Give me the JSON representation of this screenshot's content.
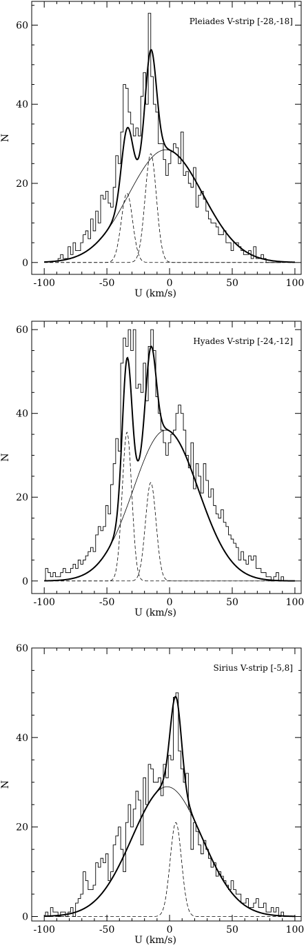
{
  "chart_data": [
    {
      "type": "line",
      "title": "Pleiades V-strip [-28,-18]",
      "xlabel": "U (km/s)",
      "ylabel": "N",
      "xlim": [
        -110,
        105
      ],
      "ylim": [
        -3,
        66
      ],
      "xticks": [
        -100,
        -50,
        0,
        50,
        100
      ],
      "yticks": [
        0,
        20,
        40,
        60
      ],
      "xtick_labels": [
        "-100",
        "-50",
        "0",
        "50",
        "100"
      ],
      "ytick_labels": [
        "0",
        "20",
        "40",
        "60"
      ],
      "grid": false,
      "series": [
        {
          "kind": "histogram",
          "bin_width": 2,
          "x": [
            -88,
            -86,
            -84,
            -82,
            -80,
            -78,
            -76,
            -74,
            -72,
            -70,
            -68,
            -66,
            -64,
            -62,
            -60,
            -58,
            -56,
            -54,
            -52,
            -50,
            -48,
            -46,
            -44,
            -42,
            -40,
            -38,
            -36,
            -34,
            -32,
            -30,
            -28,
            -26,
            -24,
            -22,
            -20,
            -18,
            -16,
            -14,
            -12,
            -10,
            -8,
            -6,
            -4,
            -2,
            0,
            2,
            4,
            6,
            8,
            10,
            12,
            14,
            16,
            18,
            20,
            22,
            24,
            26,
            28,
            30,
            32,
            34,
            36,
            38,
            40,
            42,
            44,
            46,
            48,
            50,
            52,
            54,
            56,
            58,
            60,
            62,
            64,
            66,
            68,
            70,
            72,
            74,
            76,
            78,
            80,
            82,
            84,
            86,
            88
          ],
          "values": [
            1,
            2,
            1,
            1,
            4,
            2,
            5,
            3,
            3,
            5,
            7,
            8,
            6,
            11,
            8,
            13,
            10,
            17,
            16,
            18,
            15,
            14,
            19,
            27,
            25,
            33,
            45,
            44,
            38,
            35,
            32,
            34,
            32,
            42,
            48,
            40,
            63,
            47,
            40,
            38,
            30,
            30,
            26,
            22,
            25,
            28,
            30,
            29,
            25,
            33,
            22,
            23,
            20,
            19,
            24,
            14,
            17,
            18,
            16,
            13,
            11,
            10,
            10,
            9,
            7,
            7,
            8,
            5,
            5,
            3,
            5,
            5,
            4,
            3,
            2,
            2,
            3,
            1,
            4,
            1,
            1,
            2,
            1,
            0,
            0,
            0,
            0,
            0,
            0
          ]
        },
        {
          "kind": "fit-total",
          "components": [
            [
              28.5,
              -3,
              29.5
            ],
            [
              17.5,
              -34,
              4.5
            ],
            [
              27.5,
              -15,
              4.5
            ]
          ]
        },
        {
          "kind": "fit-broad",
          "components": [
            [
              28.5,
              -3,
              29.5
            ]
          ]
        },
        {
          "kind": "fit-narrow",
          "components": [
            [
              17.5,
              -34,
              4.5
            ]
          ]
        },
        {
          "kind": "fit-narrow",
          "components": [
            [
              27.5,
              -15,
              4.5
            ]
          ]
        }
      ]
    },
    {
      "type": "line",
      "title": "Hyades V-strip [-24,-12]",
      "xlabel": "U (km/s)",
      "ylabel": "N",
      "xlim": [
        -110,
        105
      ],
      "ylim": [
        -3,
        62
      ],
      "xticks": [
        -100,
        -50,
        0,
        50,
        100
      ],
      "yticks": [
        0,
        20,
        40,
        60
      ],
      "xtick_labels": [
        "-100",
        "-50",
        "0",
        "50",
        "100"
      ],
      "ytick_labels": [
        "0",
        "20",
        "40",
        "60"
      ],
      "grid": false,
      "series": [
        {
          "kind": "histogram",
          "bin_width": 2,
          "x": [
            -98,
            -96,
            -94,
            -92,
            -90,
            -88,
            -86,
            -84,
            -82,
            -80,
            -78,
            -76,
            -74,
            -72,
            -70,
            -68,
            -66,
            -64,
            -62,
            -60,
            -58,
            -56,
            -54,
            -52,
            -50,
            -48,
            -46,
            -44,
            -42,
            -40,
            -38,
            -36,
            -34,
            -32,
            -30,
            -28,
            -26,
            -24,
            -22,
            -20,
            -18,
            -16,
            -14,
            -12,
            -10,
            -8,
            -6,
            -4,
            -2,
            0,
            2,
            4,
            6,
            8,
            10,
            12,
            14,
            16,
            18,
            20,
            22,
            24,
            26,
            28,
            30,
            32,
            34,
            36,
            38,
            40,
            42,
            44,
            46,
            48,
            50,
            52,
            54,
            56,
            58,
            60,
            62,
            64,
            66,
            68,
            70,
            72,
            74,
            76,
            78,
            80,
            82,
            84,
            86,
            88,
            90,
            92
          ],
          "values": [
            3,
            2,
            1,
            2,
            1,
            1,
            2,
            3,
            2,
            2,
            3,
            4,
            3,
            5,
            4,
            5,
            6,
            7,
            8,
            7,
            11,
            13,
            12,
            13,
            18,
            16,
            23,
            28,
            34,
            31,
            52,
            58,
            56,
            60,
            55,
            60,
            46,
            47,
            45,
            52,
            43,
            56,
            60,
            55,
            44,
            40,
            36,
            33,
            30,
            33,
            35,
            36,
            40,
            42,
            40,
            36,
            30,
            27,
            33,
            22,
            28,
            25,
            21,
            28,
            24,
            20,
            22,
            18,
            16,
            15,
            17,
            14,
            13,
            11,
            10,
            9,
            8,
            5,
            7,
            5,
            4,
            6,
            5,
            6,
            3,
            3,
            2,
            2,
            1,
            1,
            0,
            1,
            2,
            0,
            1,
            0
          ]
        },
        {
          "kind": "fit-total",
          "components": [
            [
              36,
              -3,
              26
            ],
            [
              35.5,
              -34,
              3.8
            ],
            [
              23.5,
              -15,
              4.2
            ]
          ]
        },
        {
          "kind": "fit-broad",
          "components": [
            [
              36,
              -3,
              26
            ]
          ]
        },
        {
          "kind": "fit-narrow",
          "components": [
            [
              35.5,
              -34,
              3.8
            ]
          ]
        },
        {
          "kind": "fit-narrow",
          "components": [
            [
              23.5,
              -15,
              4.2
            ]
          ]
        }
      ]
    },
    {
      "type": "line",
      "title": "Sirius V-strip [-5,8]",
      "xlabel": "U (km/s)",
      "ylabel": "N",
      "xlim": [
        -110,
        105
      ],
      "ylim": [
        -1,
        60
      ],
      "xticks": [
        -100,
        -50,
        0,
        50,
        100
      ],
      "yticks": [
        0,
        20,
        40,
        60
      ],
      "xtick_labels": [
        "-100",
        "-50",
        "0",
        "50",
        "100"
      ],
      "ytick_labels": [
        "0",
        "20",
        "40",
        "60"
      ],
      "grid": false,
      "series": [
        {
          "kind": "histogram",
          "bin_width": 2,
          "x": [
            -98,
            -96,
            -94,
            -92,
            -90,
            -88,
            -86,
            -84,
            -82,
            -80,
            -78,
            -76,
            -74,
            -72,
            -70,
            -68,
            -66,
            -64,
            -62,
            -60,
            -58,
            -56,
            -54,
            -52,
            -50,
            -48,
            -46,
            -44,
            -42,
            -40,
            -38,
            -36,
            -34,
            -32,
            -30,
            -28,
            -26,
            -24,
            -22,
            -20,
            -18,
            -16,
            -14,
            -12,
            -10,
            -8,
            -6,
            -4,
            -2,
            0,
            2,
            4,
            6,
            8,
            10,
            12,
            14,
            16,
            18,
            20,
            22,
            24,
            26,
            28,
            30,
            32,
            34,
            36,
            38,
            40,
            42,
            44,
            46,
            48,
            50,
            52,
            54,
            56,
            58,
            60,
            62,
            64,
            66,
            68,
            70,
            72,
            74,
            76,
            78,
            80,
            82,
            84,
            86,
            88,
            90,
            92,
            94,
            96,
            98
          ],
          "values": [
            1,
            0,
            2,
            1,
            1,
            0,
            1,
            1,
            0,
            1,
            2,
            0,
            3,
            4,
            5,
            10,
            8,
            6,
            6,
            7,
            12,
            11,
            13,
            12,
            14,
            8,
            10,
            16,
            18,
            20,
            15,
            10,
            21,
            25,
            20,
            24,
            28,
            26,
            16,
            31,
            25,
            34,
            33,
            30,
            30,
            31,
            27,
            34,
            31,
            36,
            35,
            49,
            50,
            37,
            33,
            30,
            32,
            24,
            15,
            21,
            19,
            16,
            14,
            17,
            15,
            13,
            11,
            12,
            9,
            10,
            9,
            8,
            7,
            6,
            8,
            6,
            5,
            5,
            3,
            3,
            4,
            2,
            2,
            3,
            4,
            2,
            2,
            3,
            1,
            1,
            2,
            1,
            2,
            0,
            1,
            0,
            0,
            0,
            0
          ]
        },
        {
          "kind": "fit-total",
          "components": [
            [
              29,
              -2,
              28
            ],
            [
              21,
              5,
              4.5
            ]
          ]
        },
        {
          "kind": "fit-broad",
          "components": [
            [
              29,
              -2,
              28
            ]
          ]
        },
        {
          "kind": "fit-narrow",
          "components": [
            [
              21,
              5,
              4.5
            ]
          ]
        }
      ]
    }
  ]
}
